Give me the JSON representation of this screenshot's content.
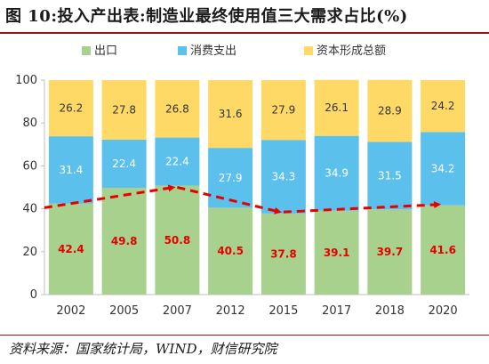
{
  "header": {
    "title": "图 10:投入产出表:制造业最终使用值三大需求占比(%)"
  },
  "footer": {
    "source": "资料来源：国家统计局，WIND，财信研究院"
  },
  "chart_data": {
    "type": "bar",
    "stacked": true,
    "categories": [
      "2002",
      "2005",
      "2007",
      "2012",
      "2015",
      "2017",
      "2018",
      "2020"
    ],
    "series": [
      {
        "name": "出口",
        "color": "#a9d18e",
        "label_color": "#e60000",
        "values": [
          42.4,
          49.8,
          50.8,
          40.5,
          37.8,
          39.1,
          39.7,
          41.6
        ]
      },
      {
        "name": "消费支出",
        "color": "#5bc0eb",
        "label_color": "#ffffff",
        "values": [
          31.4,
          22.4,
          22.4,
          27.9,
          34.3,
          34.9,
          31.5,
          34.2
        ]
      },
      {
        "name": "资本形成总额",
        "color": "#ffd966",
        "label_color": "#333333",
        "values": [
          26.2,
          27.8,
          26.8,
          31.6,
          27.9,
          26.1,
          28.9,
          24.2
        ]
      }
    ],
    "trend_line": {
      "color": "#e60000",
      "style": "dashed-arrow",
      "points": [
        [
          0,
          40.5
        ],
        [
          2,
          50
        ],
        [
          4,
          38.5
        ],
        [
          7,
          42
        ]
      ]
    },
    "ylim": [
      0,
      100
    ],
    "yticks": [
      0,
      20,
      40,
      60,
      80,
      100
    ],
    "xlabel": "",
    "ylabel": "",
    "grid": false,
    "legend_position": "top"
  }
}
